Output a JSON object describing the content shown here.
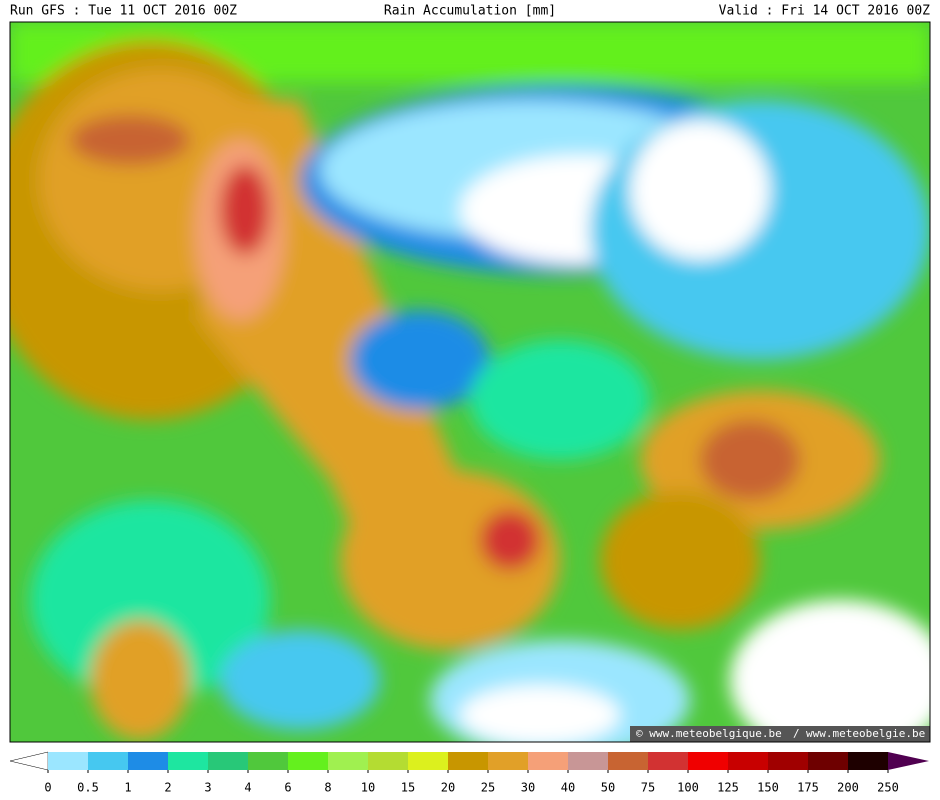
{
  "header": {
    "left": "Run GFS : Tue 11 OCT 2016 00Z",
    "center": "Rain Accumulation [mm]",
    "right": "Valid : Fri 14 OCT 2016 00Z"
  },
  "credit": {
    "left": "© www.meteobelgique.be",
    "right": "www.meteobelgie.be"
  },
  "colorbar": {
    "ticks": [
      0,
      0.5,
      1,
      2,
      3,
      4,
      6,
      8,
      10,
      15,
      20,
      25,
      30,
      40,
      50,
      75,
      100,
      125,
      150,
      175,
      200,
      250
    ],
    "colors": [
      "#9be6ff",
      "#46c8f0",
      "#1e8ce6",
      "#1ee6a0",
      "#28c878",
      "#50c83c",
      "#64f01e",
      "#a0f050",
      "#b4dc32",
      "#dcf01e",
      "#c89600",
      "#e1a028",
      "#f5a078",
      "#c89696",
      "#c86432",
      "#d23232",
      "#f00000",
      "#c80000",
      "#a00000",
      "#6e0000",
      "#1e0000"
    ],
    "under_color": "#ffffff",
    "over_color": "#500050"
  }
}
